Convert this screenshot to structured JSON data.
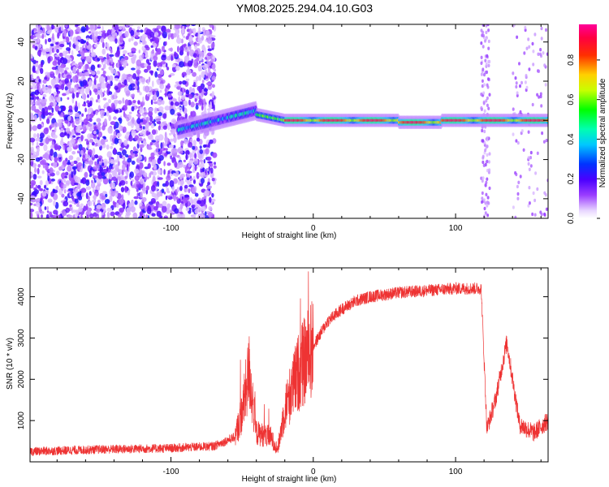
{
  "title": "YM08.2025.294.04.10.G03",
  "chart_data": [
    {
      "type": "heatmap",
      "xlabel": "Height of straight line (km)",
      "ylabel": "Frequency (Hz)",
      "xlim": [
        -199,
        165
      ],
      "ylim": [
        -50,
        49
      ],
      "xticks": [
        -100,
        0,
        100
      ],
      "yticks": [
        -40,
        -20,
        0,
        20,
        40
      ],
      "colorbar": {
        "label": "Normalized spectral amplitude",
        "range": [
          0,
          0.98
        ],
        "ticks": [
          0.0,
          0.2,
          0.4,
          0.6,
          0.8
        ],
        "colormap": "rainbow (purple → blue → cyan → green → yellow → red → magenta)"
      },
      "description_regions": [
        {
          "x": [
            -199,
            -70
          ],
          "freq": [
            -50,
            49
          ],
          "amplitude": "low noise (0.0–0.2)"
        },
        {
          "x": [
            -95,
            -40
          ],
          "freq": [
            -6,
            8
          ],
          "amplitude": "0.1–0.5, rising trace"
        },
        {
          "x": [
            -40,
            165
          ],
          "freq": [
            -3,
            3
          ],
          "amplitude": "0.3–1.0, strong carrier near 0 Hz"
        },
        {
          "x": [
            118,
            165
          ],
          "freq": [
            -50,
            49
          ],
          "amplitude": "sparse low noise"
        }
      ]
    },
    {
      "type": "line",
      "xlabel": "Height of straight line (km)",
      "ylabel": "SNR (10 * v/v)",
      "xlim": [
        -199,
        165
      ],
      "ylim": [
        0,
        4700
      ],
      "xticks": [
        -100,
        0,
        100
      ],
      "yticks": [
        1000,
        2000,
        3000,
        4000
      ],
      "color": "#ee3333",
      "series_envelope": {
        "x": [
          -199,
          -150,
          -100,
          -70,
          -55,
          -50,
          -45,
          -40,
          -30,
          -25,
          -20,
          -10,
          0,
          10,
          20,
          30,
          40,
          50,
          60,
          80,
          100,
          110,
          118,
          122,
          128,
          136,
          140,
          145,
          155,
          165
        ],
        "y": [
          250,
          300,
          330,
          380,
          600,
          1200,
          2200,
          700,
          600,
          300,
          1300,
          2200,
          2800,
          3400,
          3700,
          3900,
          4000,
          4050,
          4100,
          4150,
          4200,
          4200,
          4200,
          800,
          1500,
          2900,
          2000,
          900,
          700,
          1000
        ]
      }
    }
  ]
}
